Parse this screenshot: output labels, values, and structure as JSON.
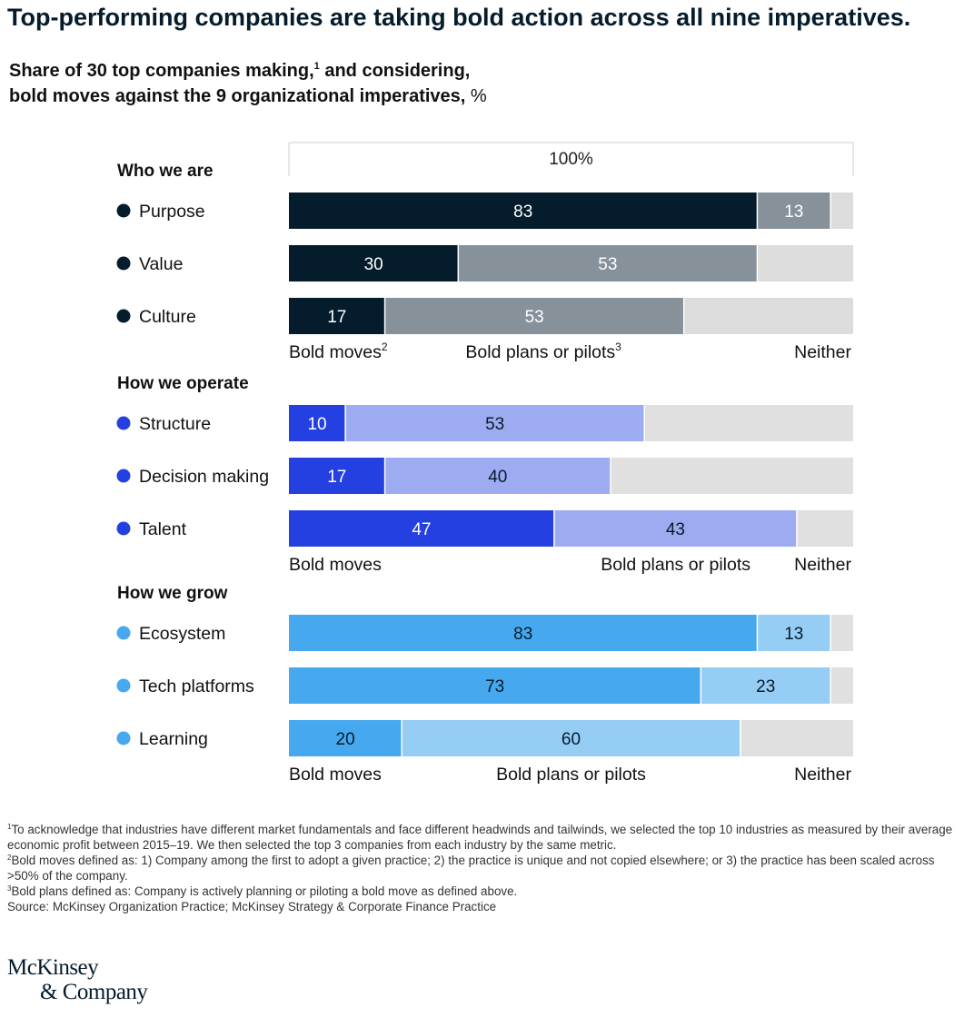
{
  "title": "Top-performing companies are taking bold action across all nine imperatives.",
  "subtitle": {
    "line1": "Share of 30 top companies making,",
    "footnote_marker": "1",
    "line1_end": " and considering,",
    "line2": "bold moves against the 9 organizational imperatives,",
    "unit": " %"
  },
  "chart_data": {
    "type": "bar",
    "orientation": "horizontal",
    "stacked": true,
    "xlim": [
      0,
      100
    ],
    "total_label": "100%",
    "series": [
      {
        "name": "Bold moves"
      },
      {
        "name": "Bold plans or pilots"
      },
      {
        "name": "Neither"
      }
    ],
    "groups": [
      {
        "name": "Who we are",
        "marker_color": "#051c2c",
        "colors": [
          "#051c2c",
          "#87919a",
          "#dcdcdc"
        ],
        "label_colors": [
          "#ffffff",
          "#ffffff"
        ],
        "legend": [
          {
            "label": "Bold moves",
            "sup": "2"
          },
          {
            "label": "Bold plans or pilots",
            "sup": "3"
          },
          {
            "label": "Neither",
            "sup": ""
          }
        ],
        "rows": [
          {
            "label": "Purpose",
            "values": [
              83,
              13
            ]
          },
          {
            "label": "Value",
            "values": [
              30,
              53
            ]
          },
          {
            "label": "Culture",
            "values": [
              17,
              53
            ]
          }
        ]
      },
      {
        "name": "How we operate",
        "marker_color": "#2540e0",
        "colors": [
          "#2540e0",
          "#9dacf0",
          "#e0e0e0"
        ],
        "label_colors": [
          "#ffffff",
          "#051c2c"
        ],
        "legend": [
          {
            "label": "Bold moves",
            "sup": ""
          },
          {
            "label": "Bold plans or pilots",
            "sup": ""
          },
          {
            "label": "Neither",
            "sup": ""
          }
        ],
        "rows": [
          {
            "label": "Structure",
            "values": [
              10,
              53
            ]
          },
          {
            "label": "Decision making",
            "values": [
              17,
              40
            ]
          },
          {
            "label": "Talent",
            "values": [
              47,
              43
            ]
          }
        ]
      },
      {
        "name": "How we grow",
        "marker_color": "#46a8ee",
        "colors": [
          "#46a8ee",
          "#96cdf5",
          "#e0e0e0"
        ],
        "label_colors": [
          "#051c2c",
          "#051c2c"
        ],
        "legend": [
          {
            "label": "Bold moves",
            "sup": ""
          },
          {
            "label": "Bold plans or pilots",
            "sup": ""
          },
          {
            "label": "Neither",
            "sup": ""
          }
        ],
        "rows": [
          {
            "label": "Ecosystem",
            "values": [
              83,
              13
            ]
          },
          {
            "label": "Tech platforms",
            "values": [
              73,
              23
            ]
          },
          {
            "label": "Learning",
            "values": [
              20,
              60
            ]
          }
        ]
      }
    ]
  },
  "footnotes": [
    {
      "marker": "1",
      "text": "To acknowledge that industries have different market fundamentals and face different headwinds and tailwinds, we selected the top 10 industries as measured by their average economic profit between 2015–19. We then selected the top 3 companies from each industry by the same metric."
    },
    {
      "marker": "2",
      "text": "Bold moves defined as: 1) Company among the first to adopt a given practice; 2) the practice is unique and not copied elsewhere; or 3) the practice has been scaled across >50% of the company."
    },
    {
      "marker": "3",
      "text": "Bold plans defined as: Company is actively planning or piloting a bold move as defined above."
    }
  ],
  "source": "Source: McKinsey Organization Practice; McKinsey Strategy & Corporate Finance Practice",
  "logo": {
    "line1": "McKinsey",
    "line2": "& Company"
  }
}
